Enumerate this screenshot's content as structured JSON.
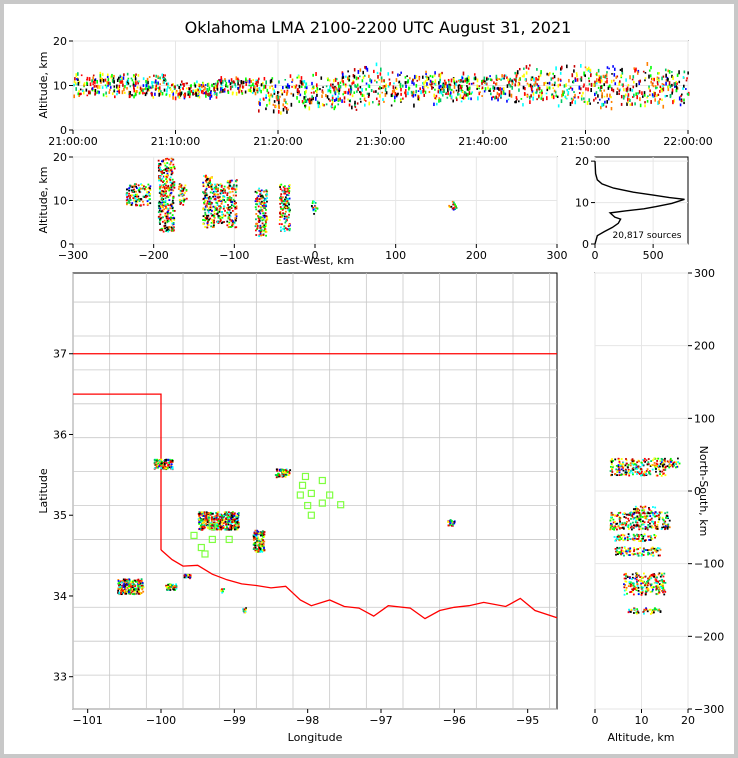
{
  "title": "Oklahoma LMA 2100-2200 UTC August 31, 2021",
  "chart_data": [
    {
      "id": "time-height",
      "type": "heatmap",
      "ylabel": "Altitude, km",
      "xticks": [
        "21:00:00",
        "21:10:00",
        "21:20:00",
        "21:30:00",
        "21:40:00",
        "21:50:00",
        "22:00:00"
      ],
      "yticks": [
        "0",
        "10",
        "20"
      ],
      "xlim_minutes": [
        0,
        60
      ],
      "ylim": [
        0,
        20
      ],
      "clusters": [
        {
          "t0": 0,
          "t1": 9,
          "z0": 7,
          "z1": 13
        },
        {
          "t0": 9,
          "t1": 14,
          "z0": 7,
          "z1": 11
        },
        {
          "t0": 14,
          "t1": 18,
          "z0": 8,
          "z1": 12
        },
        {
          "t0": 18,
          "t1": 21,
          "z0": 3,
          "z1": 12
        },
        {
          "t0": 21,
          "t1": 26,
          "z0": 4,
          "z1": 13
        },
        {
          "t0": 26,
          "t1": 30,
          "z0": 4,
          "z1": 15
        },
        {
          "t0": 30,
          "t1": 36,
          "z0": 5,
          "z1": 14
        },
        {
          "t0": 36,
          "t1": 43,
          "z0": 6,
          "z1": 13
        },
        {
          "t0": 43,
          "t1": 50,
          "z0": 5,
          "z1": 15
        },
        {
          "t0": 50,
          "t1": 57,
          "z0": 4,
          "z1": 15
        },
        {
          "t0": 57,
          "t1": 60,
          "z0": 5,
          "z1": 14
        }
      ]
    },
    {
      "id": "east-west",
      "type": "heatmap",
      "xlabel": "East-West, km",
      "ylabel": "Altitude, km",
      "xticks": [
        "−300",
        "−200",
        "−100",
        "0",
        "100",
        "200",
        "300"
      ],
      "yticks": [
        "0",
        "10",
        "20"
      ],
      "xlim": [
        -300,
        300
      ],
      "ylim": [
        0,
        20
      ],
      "clusters": [
        {
          "x0": -235,
          "x1": -205,
          "z0": 9,
          "z1": 14
        },
        {
          "x0": -195,
          "x1": -175,
          "z0": 3,
          "z1": 20
        },
        {
          "x0": -170,
          "x1": -160,
          "z0": 9,
          "z1": 14
        },
        {
          "x0": -140,
          "x1": -125,
          "z0": 4,
          "z1": 16
        },
        {
          "x0": -125,
          "x1": -112,
          "z0": 5,
          "z1": 14
        },
        {
          "x0": -110,
          "x1": -98,
          "z0": 4,
          "z1": 15
        },
        {
          "x0": -75,
          "x1": -60,
          "z0": 2,
          "z1": 13
        },
        {
          "x0": -45,
          "x1": -32,
          "z0": 3,
          "z1": 14
        },
        {
          "x0": -5,
          "x1": 2,
          "z0": 7,
          "z1": 10
        },
        {
          "x0": 165,
          "x1": 175,
          "z0": 8,
          "z1": 10
        }
      ]
    },
    {
      "id": "altitude-histogram",
      "type": "line",
      "xticks": [
        "0",
        "500"
      ],
      "yticks": [
        "0",
        "10",
        "20"
      ],
      "xlim": [
        0,
        800
      ],
      "ylim": [
        0,
        21
      ],
      "annotation": "20,817 sources",
      "points": [
        [
          0,
          0
        ],
        [
          20,
          2
        ],
        [
          80,
          3
        ],
        [
          150,
          4
        ],
        [
          200,
          5
        ],
        [
          220,
          6
        ],
        [
          170,
          6.5
        ],
        [
          130,
          7.5
        ],
        [
          260,
          8
        ],
        [
          420,
          8.5
        ],
        [
          520,
          9
        ],
        [
          660,
          9.8
        ],
        [
          770,
          10.8
        ],
        [
          640,
          11.2
        ],
        [
          500,
          11.8
        ],
        [
          330,
          12.5
        ],
        [
          160,
          13.5
        ],
        [
          60,
          14.5
        ],
        [
          20,
          15.5
        ],
        [
          5,
          17
        ],
        [
          0,
          20
        ]
      ]
    },
    {
      "id": "plan-view",
      "type": "scatter",
      "xlabel": "Longitude",
      "ylabel": "Latitude",
      "xticks": [
        "−101",
        "−100",
        "−99",
        "−98",
        "−97",
        "−96",
        "−95"
      ],
      "yticks": [
        "33",
        "34",
        "35",
        "36",
        "37"
      ],
      "xlim": [
        -101.2,
        -94.6
      ],
      "ylim": [
        32.6,
        38.0
      ],
      "station_color": "#7fff3f",
      "stations": [
        [
          -98.03,
          35.48
        ],
        [
          -97.8,
          35.43
        ],
        [
          -98.07,
          35.37
        ],
        [
          -98.1,
          35.25
        ],
        [
          -97.95,
          35.27
        ],
        [
          -97.7,
          35.25
        ],
        [
          -98.0,
          35.12
        ],
        [
          -97.8,
          35.15
        ],
        [
          -97.55,
          35.13
        ],
        [
          -97.95,
          35.0
        ],
        [
          -99.55,
          34.75
        ],
        [
          -99.3,
          34.86
        ],
        [
          -99.3,
          34.7
        ],
        [
          -99.45,
          34.6
        ],
        [
          -99.4,
          34.52
        ],
        [
          -99.07,
          34.7
        ]
      ],
      "clusters": [
        {
          "lon0": -100.1,
          "lon1": -99.85,
          "lat0": 35.58,
          "lat1": 35.7
        },
        {
          "lon0": -98.45,
          "lon1": -98.25,
          "lat0": 35.48,
          "lat1": 35.58
        },
        {
          "lon0": -99.5,
          "lon1": -98.95,
          "lat0": 34.83,
          "lat1": 35.05
        },
        {
          "lon0": -98.75,
          "lon1": -98.6,
          "lat0": 34.55,
          "lat1": 34.82
        },
        {
          "lon0": -100.6,
          "lon1": -100.25,
          "lat0": 34.03,
          "lat1": 34.22
        },
        {
          "lon0": -99.95,
          "lon1": -99.8,
          "lat0": 34.08,
          "lat1": 34.16
        },
        {
          "lon0": -99.7,
          "lon1": -99.6,
          "lat0": 34.23,
          "lat1": 34.28
        },
        {
          "lon0": -96.1,
          "lon1": -96.0,
          "lat0": 34.88,
          "lat1": 34.96
        },
        {
          "lon0": -99.2,
          "lon1": -99.15,
          "lat0": 34.05,
          "lat1": 34.1
        },
        {
          "lon0": -98.9,
          "lon1": -98.85,
          "lat0": 33.8,
          "lat1": 33.86
        }
      ]
    },
    {
      "id": "north-south",
      "type": "heatmap",
      "xlabel": "Altitude, km",
      "ylabel": "North-South, km",
      "xticks": [
        "0",
        "10",
        "20"
      ],
      "yticks": [
        "−300",
        "−200",
        "−100",
        "0",
        "100",
        "200",
        "300"
      ],
      "xlim": [
        0,
        20
      ],
      "ylim": [
        -300,
        300
      ],
      "clusters": [
        {
          "z0": 3,
          "z1": 18,
          "y0": 33,
          "y1": 46
        },
        {
          "z0": 3,
          "z1": 15,
          "y0": 22,
          "y1": 32
        },
        {
          "z0": 8,
          "z1": 13,
          "y0": -30,
          "y1": -20
        },
        {
          "z0": 3,
          "z1": 16,
          "y0": -52,
          "y1": -28
        },
        {
          "z0": 4,
          "z1": 13,
          "y0": -68,
          "y1": -58
        },
        {
          "z0": 4,
          "z1": 14,
          "y0": -88,
          "y1": -76
        },
        {
          "z0": 6,
          "z1": 15,
          "y0": -142,
          "y1": -112
        },
        {
          "z0": 7,
          "z1": 14,
          "y0": -168,
          "y1": -160
        }
      ]
    }
  ]
}
